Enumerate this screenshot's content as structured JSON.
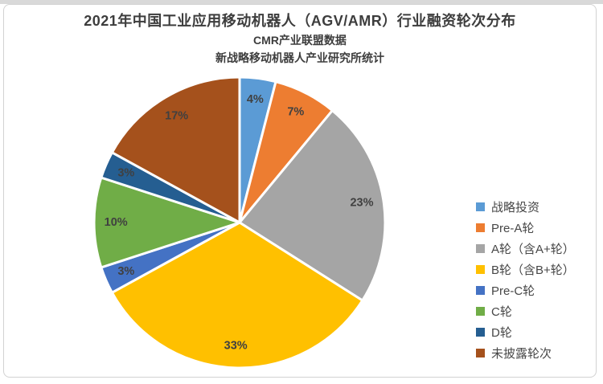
{
  "chart_data": {
    "type": "pie",
    "title": "2021年中国工业应用移动机器人（AGV/AMR）行业融资轮次分布",
    "subtitle": "CMR产业联盟数据",
    "subtitle2": "新战略移动机器人产业研究所统计",
    "labels": [
      "战略投资",
      "Pre-A轮",
      "A轮（含A+轮）",
      "B轮（含B+轮）",
      "Pre-C轮",
      "C轮",
      "D轮",
      "未披露轮次"
    ],
    "values": [
      4,
      7,
      23,
      33,
      3,
      10,
      3,
      17
    ],
    "unit": "%",
    "data_labels": [
      "4%",
      "7%",
      "23%",
      "33%",
      "3%",
      "10%",
      "3%",
      "17%"
    ],
    "colors": [
      "#5B9BD5",
      "#ED7D31",
      "#A5A5A5",
      "#FFC000",
      "#4472C4",
      "#70AD47",
      "#255E91",
      "#A5511C"
    ],
    "slice_border_color": "#ffffff",
    "data_label_color": "#404040",
    "start_angle_deg": 0,
    "direction": "clockwise",
    "legend_position": "right",
    "title_color": "#3d3d3d"
  }
}
